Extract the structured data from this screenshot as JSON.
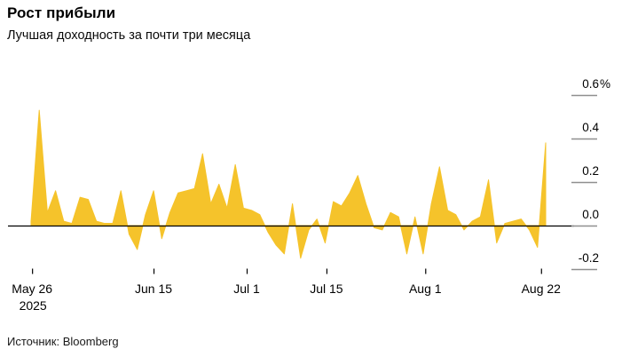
{
  "header": {
    "title": "Рост прибыли",
    "subtitle": "Лучшая доходность за почти три месяца"
  },
  "footer": {
    "source": "Источник: Bloomberg"
  },
  "chart_data": {
    "type": "area",
    "title": "Рост прибыли",
    "subtitle": "Лучшая доходность за почти три месяца",
    "source": "Источник: Bloomberg",
    "unit": "%",
    "x_start": "May 26 2025",
    "x_end": "Aug 22",
    "n_points": 64,
    "values": [
      0.02,
      0.53,
      0.06,
      0.16,
      0.02,
      0.01,
      0.13,
      0.12,
      0.02,
      0.01,
      0.01,
      0.16,
      -0.04,
      -0.11,
      0.05,
      0.16,
      -0.06,
      0.06,
      0.15,
      0.16,
      0.17,
      0.33,
      0.1,
      0.19,
      0.08,
      0.28,
      0.08,
      0.07,
      0.05,
      -0.03,
      -0.09,
      -0.13,
      0.1,
      -0.15,
      -0.02,
      0.03,
      -0.08,
      0.11,
      0.09,
      0.15,
      0.23,
      0.1,
      -0.01,
      -0.02,
      0.06,
      0.04,
      -0.13,
      0.04,
      -0.13,
      0.1,
      0.27,
      0.07,
      0.05,
      -0.02,
      0.02,
      0.04,
      0.21,
      -0.08,
      0.01,
      0.02,
      0.03,
      -0.02,
      -0.1,
      0.38
    ],
    "ylim": [
      -0.26,
      0.64
    ],
    "grid": false,
    "legend": "none",
    "yticks": [
      {
        "label": "0.6",
        "suffix": "%",
        "value": 0.6
      },
      {
        "label": "0.4",
        "suffix": "",
        "value": 0.4
      },
      {
        "label": "0.2",
        "suffix": "",
        "value": 0.2
      },
      {
        "label": "0.0",
        "suffix": "",
        "value": 0.0
      },
      {
        "label": "-0.2",
        "suffix": "",
        "value": -0.2
      }
    ],
    "xticks": [
      {
        "label": "May 26",
        "sublabel": "2025",
        "pos": 0.002
      },
      {
        "label": "Jun 15",
        "sublabel": "",
        "pos": 0.238
      },
      {
        "label": "Jul 1",
        "sublabel": "",
        "pos": 0.419
      },
      {
        "label": "Jul 15",
        "sublabel": "",
        "pos": 0.574
      },
      {
        "label": "Aug 1",
        "sublabel": "",
        "pos": 0.766
      },
      {
        "label": "Aug 22",
        "sublabel": "",
        "pos": 0.991
      }
    ],
    "colors": {
      "area": "#F5C32B",
      "baseline": "#000000",
      "tick_gray": "#8F8F8F",
      "tick_black": "#000000",
      "text": "#000000",
      "background": "#FFFFFF"
    }
  }
}
